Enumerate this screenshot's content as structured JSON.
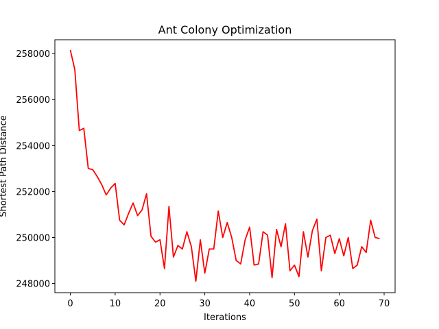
{
  "chart_data": {
    "type": "line",
    "title": "Ant Colony Optimization",
    "xlabel": "Iterations",
    "ylabel": "Shortest Path Distance",
    "xlim": [
      -3.45,
      72.45
    ],
    "ylim": [
      247600,
      258600
    ],
    "x_ticks": [
      0,
      10,
      20,
      30,
      40,
      50,
      60,
      70
    ],
    "x_tick_labels": [
      "0",
      "10",
      "20",
      "30",
      "40",
      "50",
      "60",
      "70"
    ],
    "y_ticks": [
      248000,
      250000,
      252000,
      254000,
      256000,
      258000
    ],
    "y_tick_labels": [
      "248000",
      "250000",
      "252000",
      "254000",
      "256000",
      "258000"
    ],
    "grid": false,
    "series": [
      {
        "color": "#ff0000",
        "x": [
          0,
          1,
          2,
          3,
          4,
          5,
          6,
          7,
          8,
          9,
          10,
          11,
          12,
          13,
          14,
          15,
          16,
          17,
          18,
          19,
          20,
          21,
          22,
          23,
          24,
          25,
          26,
          27,
          28,
          29,
          30,
          31,
          32,
          33,
          34,
          35,
          36,
          37,
          38,
          39,
          40,
          41,
          42,
          43,
          44,
          45,
          46,
          47,
          48,
          49,
          50,
          51,
          52,
          53,
          54,
          55,
          56,
          57,
          58,
          59,
          60,
          61,
          62,
          63,
          64,
          65,
          66,
          67,
          68,
          69
        ],
        "values": [
          258150,
          257300,
          254650,
          254750,
          253000,
          252950,
          252650,
          252300,
          251850,
          252150,
          252350,
          250750,
          250550,
          251050,
          251500,
          250950,
          251200,
          251900,
          250050,
          249800,
          249900,
          248650,
          251350,
          249150,
          249650,
          249500,
          250250,
          249600,
          248100,
          249900,
          248450,
          249500,
          249500,
          251150,
          250000,
          250650,
          250000,
          249000,
          248850,
          249900,
          250450,
          248800,
          248850,
          250250,
          250100,
          248250,
          250350,
          249600,
          250600,
          248550,
          248800,
          248300,
          250250,
          249150,
          250300,
          250800,
          248550,
          250000,
          250100,
          249300,
          249950,
          249200,
          250000,
          248650,
          248800,
          249600,
          249350,
          250750,
          250000,
          249950
        ]
      }
    ]
  }
}
